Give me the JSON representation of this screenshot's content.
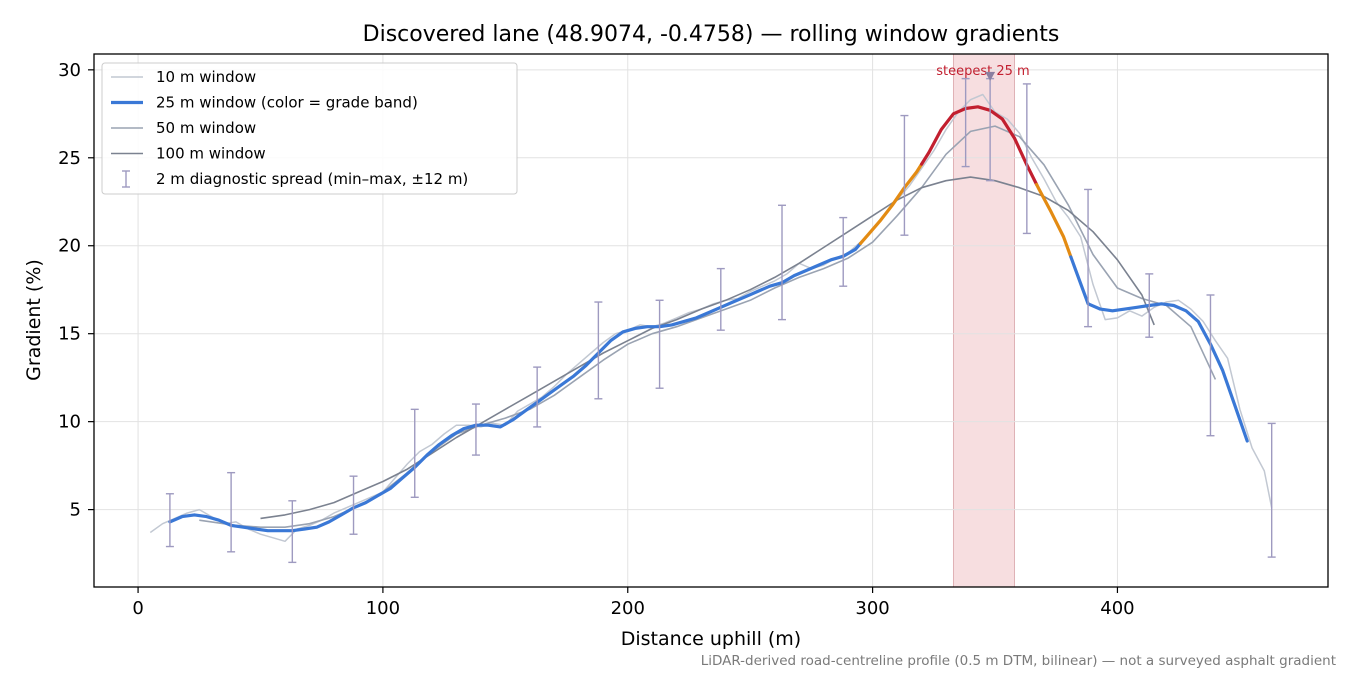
{
  "chart_data": {
    "type": "line",
    "title": "Discovered lane (48.9074, -0.4758) — rolling window gradients",
    "xlabel": "Distance uphill (m)",
    "ylabel": "Gradient (%)",
    "xlim": [
      -18,
      486
    ],
    "ylim": [
      0.6,
      30.9
    ],
    "xticks": [
      0,
      100,
      200,
      300,
      400
    ],
    "yticks": [
      5,
      10,
      15,
      20,
      25,
      30
    ],
    "grid": true,
    "legend_position": "top-left",
    "highlight_band": {
      "x0": 333,
      "x1": 358,
      "label": "steepest 25 m",
      "marker": {
        "x": 348,
        "y": 29.6
      }
    },
    "footnote": "LiDAR-derived road-centreline profile (0.5 m DTM, bilinear) — not a surveyed asphalt gradient",
    "colors": {
      "w10": "#c2c8d2",
      "w50": "#9aa3b2",
      "w100": "#7b8290",
      "blue": "#3a78d6",
      "orange": "#e38b13",
      "red": "#c21f2f",
      "band": "#f4d3d6",
      "errorbar": "#9e9ac0",
      "annot": "#c21f2f",
      "footnote": "#7a7a7a"
    },
    "series": [
      {
        "name": "10 m window",
        "x": [
          5,
          10,
          15,
          20,
          25,
          30,
          35,
          40,
          45,
          50,
          55,
          60,
          65,
          70,
          75,
          80,
          85,
          90,
          95,
          100,
          105,
          110,
          115,
          120,
          125,
          130,
          135,
          140,
          145,
          150,
          155,
          160,
          165,
          170,
          175,
          180,
          185,
          190,
          195,
          200,
          205,
          210,
          215,
          220,
          225,
          230,
          235,
          240,
          245,
          250,
          255,
          260,
          265,
          270,
          275,
          280,
          285,
          290,
          295,
          300,
          305,
          310,
          315,
          320,
          325,
          330,
          335,
          340,
          345,
          350,
          355,
          360,
          365,
          370,
          375,
          380,
          385,
          390,
          395,
          400,
          405,
          410,
          415,
          420,
          425,
          430,
          435,
          440,
          445,
          450,
          455,
          460,
          463
        ],
        "y": [
          3.7,
          4.2,
          4.5,
          4.8,
          5.0,
          4.6,
          4.2,
          4.3,
          3.9,
          3.6,
          3.4,
          3.2,
          3.9,
          4.1,
          4.4,
          4.8,
          5.1,
          5.4,
          5.7,
          6.0,
          6.8,
          7.6,
          8.3,
          8.7,
          9.3,
          9.8,
          9.8,
          9.7,
          9.9,
          9.8,
          10.6,
          11.0,
          11.4,
          12.0,
          12.7,
          13.3,
          13.9,
          14.5,
          15.0,
          15.2,
          15.5,
          15.4,
          15.6,
          15.9,
          16.2,
          16.4,
          16.7,
          16.9,
          17.0,
          17.4,
          17.7,
          18.0,
          18.4,
          19.0,
          18.7,
          18.9,
          19.3,
          19.6,
          20.2,
          20.9,
          21.7,
          22.6,
          23.4,
          24.4,
          25.4,
          26.6,
          27.6,
          28.3,
          28.6,
          27.6,
          27.2,
          26.4,
          25.0,
          23.8,
          22.5,
          21.6,
          20.5,
          17.8,
          15.8,
          15.9,
          16.3,
          16.0,
          16.5,
          16.8,
          16.9,
          16.4,
          15.7,
          14.6,
          13.6,
          10.7,
          8.5,
          7.2,
          5.1
        ]
      },
      {
        "name": "25 m window (color = grade band)",
        "x": [
          13,
          18,
          23,
          28,
          33,
          38,
          43,
          48,
          53,
          58,
          63,
          68,
          73,
          78,
          83,
          88,
          93,
          98,
          103,
          108,
          113,
          118,
          123,
          128,
          133,
          138,
          143,
          148,
          153,
          158,
          163,
          168,
          173,
          178,
          183,
          188,
          193,
          198,
          203,
          208,
          213,
          218,
          223,
          228,
          233,
          238,
          243,
          248,
          253,
          258,
          263,
          268,
          273,
          278,
          283,
          288,
          293,
          298,
          303,
          308,
          313,
          318,
          323,
          328,
          333,
          338,
          343,
          348,
          353,
          358,
          363,
          368,
          373,
          378,
          383,
          388,
          393,
          398,
          403,
          408,
          413,
          418,
          423,
          428,
          433,
          438,
          443,
          448,
          453
        ],
        "y": [
          4.3,
          4.6,
          4.7,
          4.6,
          4.4,
          4.1,
          4.0,
          3.9,
          3.8,
          3.8,
          3.8,
          3.9,
          4.0,
          4.3,
          4.7,
          5.1,
          5.4,
          5.8,
          6.2,
          6.8,
          7.4,
          8.1,
          8.7,
          9.2,
          9.6,
          9.8,
          9.8,
          9.7,
          10.1,
          10.6,
          11.1,
          11.6,
          12.1,
          12.6,
          13.2,
          13.9,
          14.6,
          15.1,
          15.3,
          15.4,
          15.4,
          15.5,
          15.7,
          15.9,
          16.2,
          16.5,
          16.8,
          17.1,
          17.4,
          17.7,
          17.9,
          18.3,
          18.6,
          18.9,
          19.2,
          19.4,
          19.8,
          20.6,
          21.4,
          22.3,
          23.3,
          24.2,
          25.3,
          26.6,
          27.5,
          27.8,
          27.9,
          27.7,
          27.2,
          26.1,
          24.6,
          23.2,
          21.9,
          20.5,
          18.6,
          16.7,
          16.4,
          16.3,
          16.4,
          16.5,
          16.6,
          16.7,
          16.6,
          16.3,
          15.7,
          14.4,
          12.9,
          10.9,
          8.9
        ],
        "grade_bands": [
          {
            "x0": 13,
            "x1": 295,
            "color": "blue"
          },
          {
            "x0": 295,
            "x1": 320,
            "color": "orange"
          },
          {
            "x0": 320,
            "x1": 367,
            "color": "red"
          },
          {
            "x0": 367,
            "x1": 381,
            "color": "orange"
          },
          {
            "x0": 381,
            "x1": 453,
            "color": "blue"
          }
        ]
      },
      {
        "name": "50 m window",
        "x": [
          25,
          30,
          40,
          50,
          60,
          70,
          80,
          90,
          100,
          110,
          120,
          130,
          140,
          150,
          160,
          170,
          180,
          190,
          200,
          210,
          220,
          230,
          240,
          250,
          260,
          270,
          280,
          290,
          300,
          310,
          320,
          330,
          340,
          350,
          360,
          370,
          380,
          390,
          400,
          410,
          420,
          430,
          440
        ],
        "y": [
          4.4,
          4.3,
          4.1,
          4.0,
          4.0,
          4.2,
          4.6,
          5.2,
          6.0,
          7.1,
          8.3,
          9.3,
          9.8,
          10.2,
          10.7,
          11.5,
          12.5,
          13.5,
          14.4,
          15.0,
          15.4,
          15.9,
          16.4,
          16.9,
          17.6,
          18.2,
          18.7,
          19.3,
          20.2,
          21.7,
          23.3,
          25.2,
          26.5,
          26.8,
          26.2,
          24.6,
          22.3,
          19.5,
          17.6,
          17.0,
          16.6,
          15.4,
          12.4
        ]
      },
      {
        "name": "100 m window",
        "x": [
          50,
          60,
          70,
          80,
          90,
          100,
          110,
          120,
          130,
          140,
          150,
          160,
          170,
          180,
          190,
          200,
          210,
          220,
          230,
          240,
          250,
          260,
          270,
          280,
          290,
          300,
          310,
          320,
          330,
          340,
          350,
          360,
          370,
          380,
          390,
          400,
          410,
          415
        ],
        "y": [
          4.5,
          4.7,
          5.0,
          5.4,
          6.0,
          6.6,
          7.3,
          8.2,
          9.1,
          9.9,
          10.7,
          11.5,
          12.3,
          13.1,
          13.9,
          14.6,
          15.3,
          15.8,
          16.4,
          16.9,
          17.5,
          18.2,
          19.0,
          19.9,
          20.8,
          21.7,
          22.6,
          23.3,
          23.7,
          23.9,
          23.7,
          23.3,
          22.8,
          22.0,
          20.8,
          19.2,
          17.2,
          15.5
        ]
      }
    ],
    "error_bars": {
      "name": "2 m diagnostic spread (min–max, ±12 m)",
      "points": [
        {
          "x": 13,
          "min": 2.9,
          "max": 5.9
        },
        {
          "x": 38,
          "min": 2.6,
          "max": 7.1
        },
        {
          "x": 63,
          "min": 2.0,
          "max": 5.5
        },
        {
          "x": 88,
          "min": 3.6,
          "max": 6.9
        },
        {
          "x": 113,
          "min": 5.7,
          "max": 10.7
        },
        {
          "x": 138,
          "min": 8.1,
          "max": 11.0
        },
        {
          "x": 163,
          "min": 9.7,
          "max": 13.1
        },
        {
          "x": 188,
          "min": 11.3,
          "max": 16.8
        },
        {
          "x": 213,
          "min": 11.9,
          "max": 16.9
        },
        {
          "x": 238,
          "min": 15.2,
          "max": 18.7
        },
        {
          "x": 263,
          "min": 15.8,
          "max": 22.3
        },
        {
          "x": 288,
          "min": 17.7,
          "max": 21.6
        },
        {
          "x": 313,
          "min": 20.6,
          "max": 27.4
        },
        {
          "x": 338,
          "min": 24.5,
          "max": 29.5
        },
        {
          "x": 348,
          "min": 23.7,
          "max": 29.5
        },
        {
          "x": 363,
          "min": 20.7,
          "max": 29.2
        },
        {
          "x": 388,
          "min": 15.4,
          "max": 23.2
        },
        {
          "x": 413,
          "min": 14.8,
          "max": 18.4
        },
        {
          "x": 438,
          "min": 9.2,
          "max": 17.2
        },
        {
          "x": 463,
          "min": 2.3,
          "max": 9.9
        }
      ]
    }
  }
}
